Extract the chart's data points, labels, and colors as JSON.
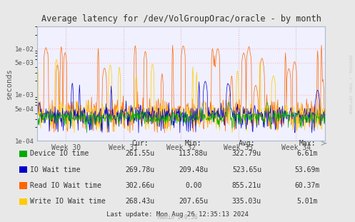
{
  "title": "Average latency for /dev/VolGroupOrac/oracle - by month",
  "ylabel": "seconds",
  "bg_color": "#e8e8e8",
  "plot_bg_color": "#f0f0ff",
  "grid_color_h": "#ffaaaa",
  "grid_color_v": "#ddaaaa",
  "x_ticks_labels": [
    "Week 30",
    "Week 31",
    "Week 32",
    "Week 33",
    "Week 34"
  ],
  "ylim_min": 0.0001,
  "ylim_max": 0.03,
  "series_colors": [
    "#00aa00",
    "#0000cc",
    "#ff6600",
    "#ffcc00"
  ],
  "series_labels": [
    "Device IO time",
    "IO Wait time",
    "Read IO Wait time",
    "Write IO Wait time"
  ],
  "legend_headers": [
    "Cur:",
    "Min:",
    "Avg:",
    "Max:"
  ],
  "legend_data": [
    [
      "261.55u",
      "113.88u",
      "322.79u",
      "6.61m"
    ],
    [
      "269.78u",
      "209.48u",
      "523.65u",
      "53.69m"
    ],
    [
      "302.66u",
      "0.00",
      "855.21u",
      "60.37m"
    ],
    [
      "268.43u",
      "207.65u",
      "335.03u",
      "5.01m"
    ]
  ],
  "footer": "Last update: Mon Aug 26 12:35:13 2024",
  "munin_version": "Munin 2.0.56",
  "rrdtool_label": "RRDTOOL / TOBI OETIKER",
  "n_points": 600,
  "base_level": 0.00022
}
